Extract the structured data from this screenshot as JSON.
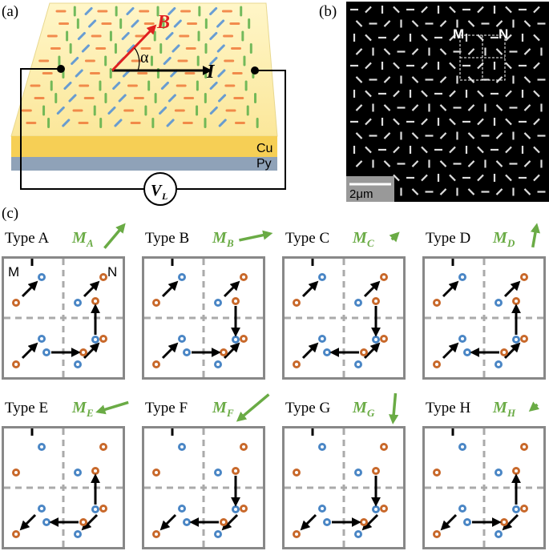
{
  "panel_a": {
    "label": "(a)",
    "field_label": "B",
    "angle_label": "α",
    "current_label": "I",
    "layer_top": "Cu",
    "layer_bottom": "Py",
    "voltage_label": "V",
    "voltage_subscript": "L"
  },
  "panel_b": {
    "label": "(b)",
    "marker_m": "M",
    "marker_n": "N",
    "scale_bar": "2μm"
  },
  "panel_c": {
    "label": "(c)",
    "corner_m": "M",
    "corner_n": "N",
    "types": [
      {
        "name": "Type A",
        "moment": "M",
        "moment_subscript": "A"
      },
      {
        "name": "Type B",
        "moment": "M",
        "moment_subscript": "B"
      },
      {
        "name": "Type C",
        "moment": "M",
        "moment_subscript": "C"
      },
      {
        "name": "Type D",
        "moment": "M",
        "moment_subscript": "D"
      },
      {
        "name": "Type E",
        "moment": "M",
        "moment_subscript": "E"
      },
      {
        "name": "Type F",
        "moment": "M",
        "moment_subscript": "F"
      },
      {
        "name": "Type G",
        "moment": "M",
        "moment_subscript": "G"
      },
      {
        "name": "Type H",
        "moment": "M",
        "moment_subscript": "H"
      }
    ]
  }
}
